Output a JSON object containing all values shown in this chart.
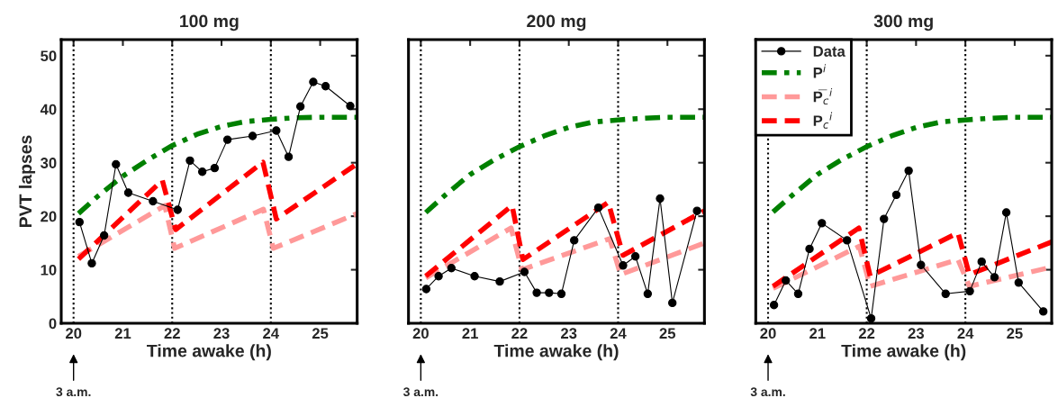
{
  "chart_data": [
    {
      "type": "line",
      "title": "100 mg",
      "xlabel": "Time awake (h)",
      "ylabel": "PVT lapses",
      "xlim": [
        19.75,
        25.75
      ],
      "ylim": [
        0,
        53
      ],
      "xticks": [
        20,
        21,
        22,
        23,
        24,
        25
      ],
      "yticks": [
        0,
        10,
        20,
        30,
        40,
        50
      ],
      "grid": false,
      "ref_lines": [
        {
          "axis": "x",
          "value": 20,
          "line_style": "dotted",
          "color": "#000000"
        },
        {
          "axis": "x",
          "value": 22,
          "line_style": "dotted",
          "color": "#000000"
        },
        {
          "axis": "x",
          "value": 24,
          "line_style": "dotted",
          "color": "#000000"
        }
      ],
      "annotations": [
        "3 a.m."
      ],
      "series": [
        {
          "color": "#000000",
          "marker": "circle",
          "line_style": "solid",
          "x": [
            20.12,
            20.37,
            20.62,
            20.86,
            21.11,
            21.61,
            22.11,
            22.36,
            22.61,
            22.86,
            23.12,
            23.63,
            24.11,
            24.36,
            24.6,
            24.86,
            25.11,
            25.61
          ],
          "values": [
            18.9,
            11.2,
            16.4,
            29.7,
            24.4,
            22.8,
            21.2,
            30.4,
            28.3,
            29.0,
            34.3,
            35.0,
            36.0,
            31.1,
            40.5,
            45.1,
            44.3,
            40.6
          ]
        },
        {
          "color": "#008000",
          "marker": "none",
          "line_style": "dashdot",
          "x": [
            20.1,
            20.5,
            21,
            21.5,
            22,
            22.5,
            23,
            23.5,
            24,
            24.5,
            25,
            25.75
          ],
          "values": [
            20.5,
            23.8,
            27.5,
            30.5,
            33.2,
            35.3,
            36.8,
            37.7,
            38.1,
            38.4,
            38.5,
            38.5
          ]
        },
        {
          "color": "#ff9999",
          "marker": "none",
          "line_style": "dashed",
          "x": [
            20.1,
            21.85,
            22.05,
            23.85,
            24.05,
            25.75
          ],
          "values": [
            12.5,
            22.0,
            14.0,
            21.3,
            14.0,
            20.5
          ]
        },
        {
          "color": "#ff0000",
          "marker": "none",
          "line_style": "dashed",
          "x": [
            20.1,
            21.8,
            22.07,
            23.84,
            24.11,
            25.75
          ],
          "values": [
            12.0,
            26.7,
            17.5,
            30.1,
            19.5,
            29.8
          ]
        }
      ]
    },
    {
      "type": "line",
      "title": "200 mg",
      "xlabel": "Time awake (h)",
      "xlim": [
        19.75,
        25.75
      ],
      "ylim": [
        0,
        53
      ],
      "xticks": [
        20,
        21,
        22,
        23,
        24,
        25
      ],
      "yticks": [
        {
          "value": 0,
          "label": null
        },
        {
          "value": 10,
          "label": null
        },
        {
          "value": 20,
          "label": null
        },
        {
          "value": 30,
          "label": null
        },
        {
          "value": 40,
          "label": null
        },
        {
          "value": 50,
          "label": null
        }
      ],
      "tick_labels": "x",
      "grid": false,
      "ref_lines": [
        {
          "axis": "x",
          "value": 20,
          "line_style": "dotted",
          "color": "#000000"
        },
        {
          "axis": "x",
          "value": 22,
          "line_style": "dotted",
          "color": "#000000"
        },
        {
          "axis": "x",
          "value": 24,
          "line_style": "dotted",
          "color": "#000000"
        }
      ],
      "annotations": [
        "3 a.m."
      ],
      "series": [
        {
          "color": "#000000",
          "marker": "circle",
          "line_style": "solid",
          "x": [
            20.11,
            20.36,
            20.62,
            21.09,
            21.6,
            22.1,
            22.35,
            22.6,
            22.85,
            23.11,
            23.6,
            24.1,
            24.35,
            24.6,
            24.85,
            25.1,
            25.6
          ],
          "values": [
            6.4,
            8.8,
            10.3,
            8.8,
            7.8,
            9.6,
            5.7,
            5.7,
            5.5,
            15.5,
            21.6,
            10.8,
            12.5,
            5.5,
            23.3,
            3.8,
            21.0
          ]
        },
        {
          "color": "#008000",
          "marker": "none",
          "line_style": "dashdot",
          "x": [
            20.1,
            20.5,
            21,
            21.5,
            22,
            22.5,
            23,
            23.5,
            24,
            24.5,
            25,
            25.75
          ],
          "values": [
            20.7,
            24.0,
            27.8,
            30.6,
            33.0,
            35.0,
            36.6,
            37.6,
            38.0,
            38.3,
            38.5,
            38.5
          ]
        },
        {
          "color": "#ff9999",
          "marker": "none",
          "line_style": "dashed",
          "x": [
            20.1,
            21.83,
            22.05,
            23.83,
            24.05,
            25.75
          ],
          "values": [
            8.5,
            17.8,
            10.0,
            15.8,
            9.1,
            15.0
          ]
        },
        {
          "color": "#ff0000",
          "marker": "none",
          "line_style": "dashed",
          "x": [
            20.1,
            21.85,
            22.07,
            23.8,
            24.1,
            25.75
          ],
          "values": [
            8.8,
            22.0,
            11.9,
            22.6,
            12.7,
            21.0
          ]
        }
      ]
    },
    {
      "type": "line",
      "title": "300 mg",
      "xlabel": "Time awake (h)",
      "xlim": [
        19.75,
        25.75
      ],
      "ylim": [
        0,
        53
      ],
      "xticks": [
        20,
        21,
        22,
        23,
        24,
        25
      ],
      "yticks": [
        {
          "value": 0,
          "label": null
        },
        {
          "value": 10,
          "label": null
        },
        {
          "value": 20,
          "label": null
        },
        {
          "value": 30,
          "label": null
        },
        {
          "value": 40,
          "label": null
        },
        {
          "value": 50,
          "label": null
        }
      ],
      "tick_labels": "x",
      "grid": false,
      "legend": "top left",
      "ref_lines": [
        {
          "axis": "x",
          "value": 20,
          "line_style": "dotted",
          "color": "#000000"
        },
        {
          "axis": "x",
          "value": 22,
          "line_style": "dotted",
          "color": "#000000"
        },
        {
          "axis": "x",
          "value": 24,
          "line_style": "dotted",
          "color": "#000000"
        }
      ],
      "annotations": [
        "3 a.m."
      ],
      "series": [
        {
          "name": "Data",
          "color": "#000000",
          "marker": "circle",
          "line_style": "solid",
          "x": [
            20.12,
            20.36,
            20.61,
            20.84,
            21.09,
            21.6,
            22.09,
            22.35,
            22.6,
            22.85,
            23.1,
            23.6,
            24.09,
            24.33,
            24.59,
            24.83,
            25.08,
            25.58
          ],
          "values": [
            3.4,
            8.0,
            5.5,
            13.9,
            18.7,
            15.5,
            0.9,
            19.5,
            24.0,
            28.5,
            10.9,
            5.5,
            6.0,
            11.5,
            8.6,
            20.7,
            7.6,
            2.2
          ]
        },
        {
          "name": "P$^{i}$",
          "color": "#008000",
          "marker": "none",
          "line_style": "dashdot",
          "x": [
            20.1,
            20.5,
            21,
            21.5,
            22,
            22.5,
            23,
            23.5,
            24,
            24.5,
            25,
            25.75
          ],
          "values": [
            20.8,
            24.0,
            27.8,
            30.6,
            33.0,
            35.0,
            36.6,
            37.6,
            38.0,
            38.3,
            38.5,
            38.5
          ]
        },
        {
          "name": "P̅$_{c}$$^{i}$",
          "color": "#ff9999",
          "marker": "none",
          "line_style": "dashed",
          "x": [
            20.1,
            21.85,
            22.07,
            23.85,
            24.08,
            25.75
          ],
          "values": [
            6.5,
            14.4,
            6.9,
            11.9,
            6.9,
            10.5
          ]
        },
        {
          "name": "P$_{c}$$^{i}$",
          "color": "#ff0000",
          "marker": "none",
          "line_style": "dashed",
          "x": [
            20.1,
            21.84,
            22.07,
            23.85,
            24.08,
            25.75
          ],
          "values": [
            6.9,
            17.8,
            8.8,
            16.9,
            9.1,
            15.2
          ]
        }
      ]
    }
  ]
}
